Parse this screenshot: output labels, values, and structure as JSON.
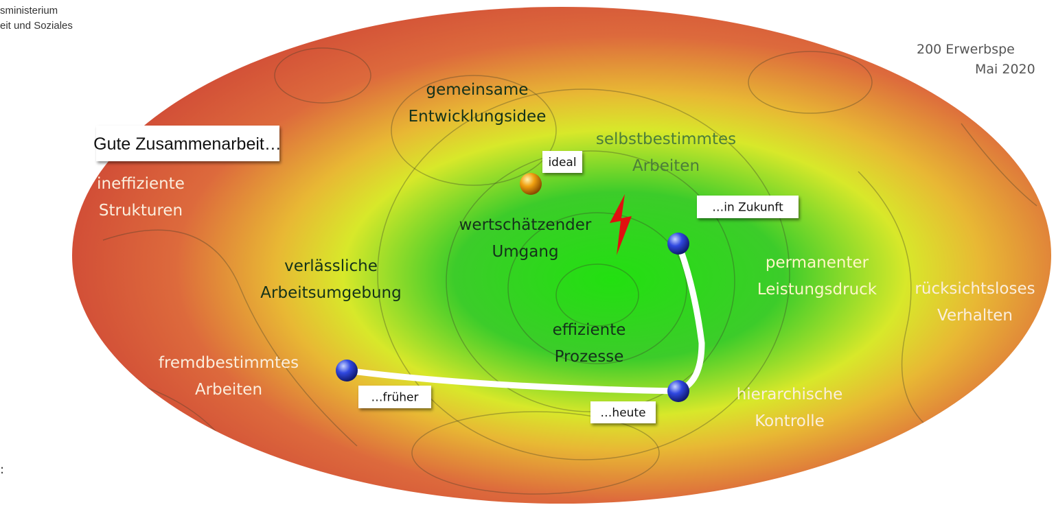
{
  "header": {
    "org_lines": [
      "sministerium",
      "eit und Soziales"
    ],
    "source_lines": [
      "200 Erwerbspe",
      "Mai 2020"
    ],
    "footnote": ":"
  },
  "title_box": "Gute Zusammenarbeit…",
  "labels": [
    {
      "lines": [
        "gemeinsame",
        "Entwicklungsidee"
      ]
    },
    {
      "lines": [
        "selbstbestimmtes",
        "Arbeiten"
      ]
    },
    {
      "lines": [
        "ineffiziente",
        "Strukturen"
      ]
    },
    {
      "lines": [
        "wertschätzender",
        "Umgang"
      ]
    },
    {
      "lines": [
        "verlässliche",
        "Arbeitsumgebung"
      ]
    },
    {
      "lines": [
        "permanenter",
        "Leistungsdruck"
      ]
    },
    {
      "lines": [
        "rücksichtsloses",
        "Verhalten"
      ]
    },
    {
      "lines": [
        "effiziente",
        "Prozesse"
      ]
    },
    {
      "lines": [
        "fremdbestimmtes",
        "Arbeiten"
      ]
    },
    {
      "lines": [
        "hierarchische",
        "Kontrolle"
      ]
    }
  ],
  "markers": [
    {
      "label": "ideal"
    },
    {
      "label": "…in Zukunft"
    },
    {
      "label": "…früher"
    },
    {
      "label": "…heute"
    }
  ]
}
